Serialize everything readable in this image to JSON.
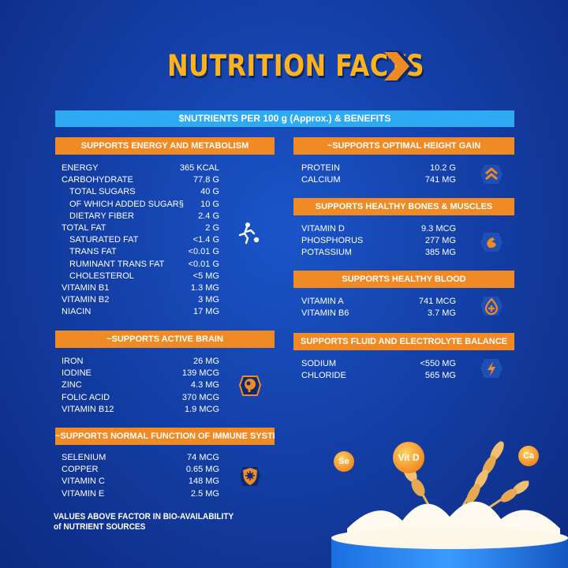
{
  "title": "NUTRITION FACTS",
  "band": "$NUTRIENTS PER 100 g (Approx.) & BENEFITS",
  "left": {
    "energy": {
      "header": "SUPPORTS ENERGY AND METABOLISM",
      "icon": "football-player-icon",
      "rows": [
        {
          "name": "ENERGY",
          "value": "365 KCAL"
        },
        {
          "name": "CARBOHYDRATE",
          "value": "77.8 G"
        },
        {
          "name": "TOTAL SUGARS",
          "value": "40 G",
          "indent": true
        },
        {
          "name": "OF WHICH ADDED SUGAR§",
          "value": "10 G",
          "indent": true
        },
        {
          "name": "DIETARY FIBER",
          "value": "2.4 G",
          "indent": true
        },
        {
          "name": "TOTAL FAT",
          "value": "2 G"
        },
        {
          "name": "SATURATED FAT",
          "value": "<1.4 G",
          "indent": true
        },
        {
          "name": "TRANS FAT",
          "value": "<0.01 G",
          "indent": true
        },
        {
          "name": "RUMINANT TRANS FAT",
          "value": "<0.01 G",
          "indent": true
        },
        {
          "name": "CHOLESTEROL",
          "value": "<5 MG",
          "indent": true
        },
        {
          "name": "VITAMIN B1",
          "value": "1.3 MG"
        },
        {
          "name": "VITAMIN B2",
          "value": "3 MG"
        },
        {
          "name": "NIACIN",
          "value": "17 MG"
        }
      ]
    },
    "brain": {
      "header": "~SUPPORTS ACTIVE BRAIN",
      "icon": "brain-head-icon",
      "rows": [
        {
          "name": "IRON",
          "value": "26 MG"
        },
        {
          "name": "IODINE",
          "value": "139 MCG"
        },
        {
          "name": "ZINC",
          "value": "4.3 MG"
        },
        {
          "name": "FOLIC ACID",
          "value": "370 MCG"
        },
        {
          "name": "VITAMIN B12",
          "value": "1.9 MCG"
        }
      ]
    },
    "immune": {
      "header": "~SUPPORTS NORMAL FUNCTION OF IMMUNE SYSTEM",
      "icon": "shield-virus-icon",
      "rows": [
        {
          "name": "SELENIUM",
          "value": "74 MCG"
        },
        {
          "name": "COPPER",
          "value": "0.65 MG"
        },
        {
          "name": "VITAMIN C",
          "value": "148 MG"
        },
        {
          "name": "VITAMIN E",
          "value": "2.5 MG"
        }
      ]
    }
  },
  "right": {
    "height": {
      "header": "~SUPPORTS OPTIMAL HEIGHT GAIN",
      "icon": "double-chevron-up-icon",
      "rows": [
        {
          "name": "PROTEIN",
          "value": "10.2 G"
        },
        {
          "name": "CALCIUM",
          "value": "741 MG"
        }
      ]
    },
    "bones": {
      "header": "SUPPORTS HEALTHY BONES & MUSCLES",
      "icon": "flexed-arm-icon",
      "rows": [
        {
          "name": "VITAMIN D",
          "value": "9.3 MCG"
        },
        {
          "name": "PHOSPHORUS",
          "value": "277 MG"
        },
        {
          "name": "POTASSIUM",
          "value": "385 MG"
        }
      ]
    },
    "blood": {
      "header": "SUPPORTS HEALTHY BLOOD",
      "icon": "blood-drop-plus-icon",
      "rows": [
        {
          "name": "VITAMIN A",
          "value": "741 MCG"
        },
        {
          "name": "VITAMIN B6",
          "value": "3.7 MG"
        }
      ]
    },
    "fluid": {
      "header": "SUPPORTS FLUID AND ELECTROLYTE BALANCE",
      "icon": "lightning-icon",
      "rows": [
        {
          "name": "SODIUM",
          "value": "<550 MG"
        },
        {
          "name": "CHLORIDE",
          "value": "565 MG"
        }
      ]
    }
  },
  "footnote": {
    "line1": "VALUES ABOVE FACTOR IN BIO-AVAILABILITY",
    "line2": "of NUTRIENT SOURCES"
  },
  "bowl_labels": {
    "se": "Se",
    "vitd": "Vit D",
    "ca": "Ca"
  },
  "colors": {
    "accent_orange": "#f08a24",
    "band_blue": "#2eaaf3",
    "title_yellow": "#ffb21c"
  }
}
